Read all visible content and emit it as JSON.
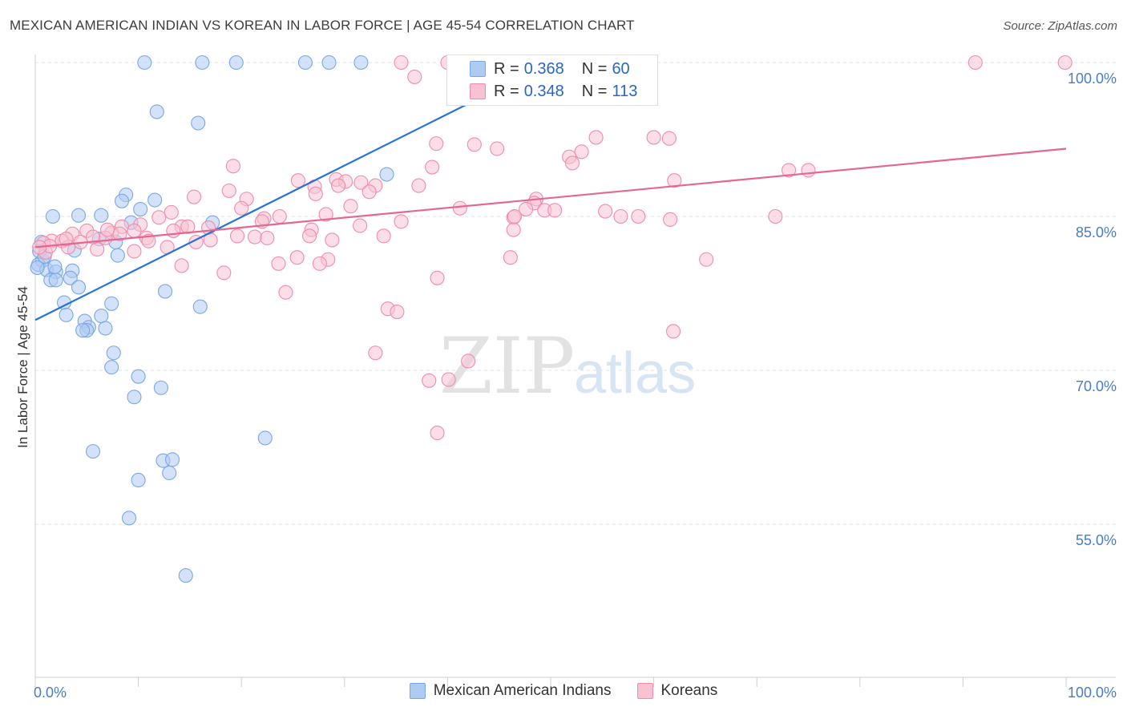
{
  "title": "MEXICAN AMERICAN INDIAN VS KOREAN IN LABOR FORCE | AGE 45-54 CORRELATION CHART",
  "source": "Source: ZipAtlas.com",
  "watermark": {
    "zip": "ZIP",
    "atlas": "atlas"
  },
  "legend": {
    "rows": [
      {
        "r_label": "R = ",
        "r_value": "0.368",
        "n_label": "N = ",
        "n_value": "60",
        "swatch": "#aecbf2",
        "border": "#7aa7e6"
      },
      {
        "r_label": "R = ",
        "r_value": "0.348",
        "n_label": "N = ",
        "n_value": "113",
        "swatch": "#f8c2d3",
        "border": "#f08cab"
      }
    ]
  },
  "bottom_legend": [
    {
      "label": "Mexican American Indians",
      "swatch": "#aecbf2",
      "border": "#7aa7e6"
    },
    {
      "label": "Koreans",
      "swatch": "#f8c2d3",
      "border": "#f08cab"
    }
  ],
  "chart_data": {
    "type": "scatter",
    "title": "MEXICAN AMERICAN INDIAN VS KOREAN IN LABOR FORCE | AGE 45-54 CORRELATION CHART",
    "xlabel": "",
    "ylabel": "In Labor Force | Age 45-54",
    "xlim": [
      0,
      100
    ],
    "ylim": [
      40,
      100.0
    ],
    "x_tick_labels": [
      {
        "value": 0,
        "label": "0.0%"
      },
      {
        "value": 100,
        "label": "100.0%"
      }
    ],
    "y_tick_labels": [
      {
        "value": 100,
        "label": "100.0%"
      },
      {
        "value": 85,
        "label": "85.0%"
      },
      {
        "value": 70,
        "label": "70.0%"
      },
      {
        "value": 55,
        "label": "55.0%"
      }
    ],
    "series": [
      {
        "name": "Mexican American Indians",
        "color": "#7aa7e6",
        "fill": "#aecbf2",
        "line_color": "#2a72d0",
        "trend": {
          "x0": 0,
          "y0": 74.9,
          "x1": 50.0,
          "y1": 100.0
        },
        "points": [
          [
            10.6,
            100
          ],
          [
            16.2,
            100
          ],
          [
            19.5,
            100
          ],
          [
            26.2,
            100
          ],
          [
            28.5,
            100
          ],
          [
            31.6,
            100
          ],
          [
            11.8,
            95.2
          ],
          [
            15.8,
            94.1
          ],
          [
            34.1,
            89.1
          ],
          [
            8.8,
            87.1
          ],
          [
            8.4,
            86.5
          ],
          [
            11.6,
            86.6
          ],
          [
            10.2,
            85.7
          ],
          [
            4.2,
            85.1
          ],
          [
            6.4,
            85.1
          ],
          [
            1.7,
            85.0
          ],
          [
            9.3,
            84.4
          ],
          [
            17.2,
            84.4
          ],
          [
            0.6,
            82.5
          ],
          [
            6.2,
            82.8
          ],
          [
            7.8,
            82.5
          ],
          [
            3.8,
            81.7
          ],
          [
            8.0,
            81.2
          ],
          [
            0.7,
            80.7
          ],
          [
            0.3,
            80.3
          ],
          [
            1.1,
            79.8
          ],
          [
            2.0,
            79.6
          ],
          [
            3.6,
            79.7
          ],
          [
            1.5,
            78.8
          ],
          [
            2.0,
            78.8
          ],
          [
            3.4,
            79.0
          ],
          [
            4.2,
            78.1
          ],
          [
            12.6,
            77.7
          ],
          [
            2.8,
            76.6
          ],
          [
            7.4,
            76.5
          ],
          [
            16.0,
            76.2
          ],
          [
            3.0,
            75.4
          ],
          [
            6.4,
            75.3
          ],
          [
            4.8,
            74.8
          ],
          [
            5.2,
            74.2
          ],
          [
            5.0,
            73.9
          ],
          [
            4.6,
            73.9
          ],
          [
            6.8,
            74.1
          ],
          [
            7.6,
            71.7
          ],
          [
            7.4,
            70.3
          ],
          [
            10.0,
            69.4
          ],
          [
            12.2,
            68.3
          ],
          [
            9.6,
            67.4
          ],
          [
            22.3,
            63.4
          ],
          [
            5.6,
            62.1
          ],
          [
            12.4,
            61.2
          ],
          [
            13.3,
            61.3
          ],
          [
            13.0,
            60.0
          ],
          [
            10.0,
            59.3
          ],
          [
            9.1,
            55.6
          ],
          [
            14.6,
            50.0
          ],
          [
            0.4,
            81.6
          ],
          [
            0.9,
            81.1
          ],
          [
            1.9,
            80.1
          ],
          [
            0.2,
            80.0
          ]
        ]
      },
      {
        "name": "Koreans",
        "color": "#f08cab",
        "fill": "#f8c2d3",
        "line_color": "#e4678f",
        "trend": {
          "x0": 0,
          "y0": 82.0,
          "x1": 100,
          "y1": 91.6
        },
        "points": [
          [
            35.5,
            100
          ],
          [
            40.0,
            100
          ],
          [
            91.2,
            100
          ],
          [
            99.9,
            100
          ],
          [
            36.8,
            98.6
          ],
          [
            38.9,
            92.1
          ],
          [
            42.6,
            92.0
          ],
          [
            44.8,
            91.6
          ],
          [
            54.4,
            92.7
          ],
          [
            60.0,
            92.7
          ],
          [
            61.5,
            92.6
          ],
          [
            53.0,
            91.3
          ],
          [
            51.8,
            90.8
          ],
          [
            52.1,
            90.2
          ],
          [
            38.5,
            89.8
          ],
          [
            19.2,
            89.9
          ],
          [
            73.1,
            89.5
          ],
          [
            75.0,
            89.5
          ],
          [
            62.0,
            88.5
          ],
          [
            25.5,
            88.5
          ],
          [
            29.2,
            88.6
          ],
          [
            30.1,
            88.4
          ],
          [
            31.6,
            88.3
          ],
          [
            33.0,
            88.0
          ],
          [
            29.4,
            88.0
          ],
          [
            37.2,
            88.0
          ],
          [
            27.1,
            87.9
          ],
          [
            18.8,
            87.5
          ],
          [
            32.4,
            87.4
          ],
          [
            27.2,
            87.2
          ],
          [
            15.4,
            86.9
          ],
          [
            20.5,
            86.7
          ],
          [
            48.6,
            86.7
          ],
          [
            48.4,
            86.3
          ],
          [
            30.6,
            86.0
          ],
          [
            20.0,
            85.8
          ],
          [
            49.4,
            85.6
          ],
          [
            47.6,
            85.7
          ],
          [
            50.4,
            85.6
          ],
          [
            41.2,
            85.8
          ],
          [
            55.3,
            85.5
          ],
          [
            13.2,
            85.4
          ],
          [
            28.2,
            85.2
          ],
          [
            23.7,
            85.0
          ],
          [
            22.2,
            84.8
          ],
          [
            46.4,
            84.9
          ],
          [
            46.5,
            85.0
          ],
          [
            56.8,
            85.0
          ],
          [
            58.5,
            85.0
          ],
          [
            61.6,
            84.7
          ],
          [
            71.8,
            85.0
          ],
          [
            12.0,
            84.9
          ],
          [
            35.5,
            84.5
          ],
          [
            22.0,
            84.5
          ],
          [
            14.2,
            84.0
          ],
          [
            14.8,
            84.0
          ],
          [
            31.5,
            84.1
          ],
          [
            10.2,
            84.2
          ],
          [
            8.4,
            84.0
          ],
          [
            9.6,
            83.6
          ],
          [
            5.0,
            83.6
          ],
          [
            7.4,
            83.4
          ],
          [
            3.6,
            83.3
          ],
          [
            16.8,
            83.9
          ],
          [
            26.8,
            83.7
          ],
          [
            46.4,
            83.7
          ],
          [
            13.4,
            83.6
          ],
          [
            8.2,
            83.3
          ],
          [
            1.6,
            82.6
          ],
          [
            0.8,
            82.4
          ],
          [
            2.6,
            82.6
          ],
          [
            4.4,
            82.5
          ],
          [
            6.8,
            82.9
          ],
          [
            10.8,
            82.9
          ],
          [
            17.0,
            82.7
          ],
          [
            19.6,
            83.1
          ],
          [
            21.3,
            83.0
          ],
          [
            22.5,
            82.9
          ],
          [
            26.6,
            83.1
          ],
          [
            28.8,
            82.7
          ],
          [
            33.8,
            83.1
          ],
          [
            3.2,
            82.0
          ],
          [
            12.8,
            82.0
          ],
          [
            6.0,
            81.8
          ],
          [
            9.6,
            81.6
          ],
          [
            1.0,
            81.5
          ],
          [
            1.4,
            82.1
          ],
          [
            0.4,
            82.0
          ],
          [
            25.4,
            81.0
          ],
          [
            23.6,
            80.4
          ],
          [
            28.4,
            80.8
          ],
          [
            27.6,
            80.4
          ],
          [
            46.1,
            81.0
          ],
          [
            65.1,
            80.8
          ],
          [
            14.2,
            80.2
          ],
          [
            18.3,
            79.5
          ],
          [
            39.0,
            79.0
          ],
          [
            24.3,
            77.6
          ],
          [
            34.2,
            76.0
          ],
          [
            35.1,
            75.7
          ],
          [
            61.9,
            73.8
          ],
          [
            33.0,
            71.7
          ],
          [
            42.0,
            70.9
          ],
          [
            38.2,
            69.0
          ],
          [
            40.1,
            69.1
          ],
          [
            39.0,
            63.9
          ],
          [
            7.0,
            83.7
          ],
          [
            11.0,
            82.6
          ],
          [
            15.6,
            82.5
          ],
          [
            3.0,
            82.8
          ],
          [
            5.6,
            83.0
          ]
        ]
      }
    ]
  }
}
